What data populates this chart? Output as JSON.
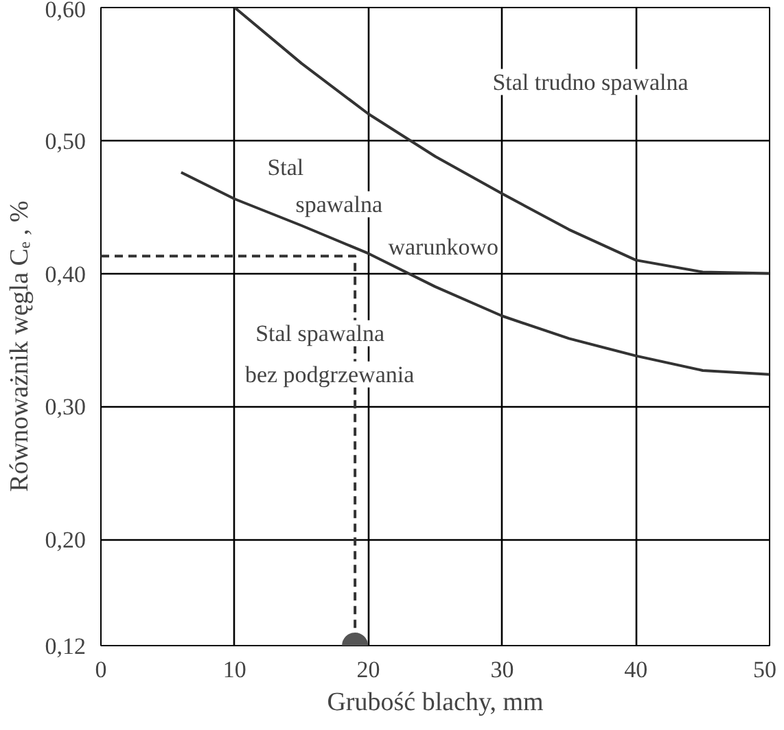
{
  "chart_data": {
    "type": "line",
    "xlabel": "Grubość blachy, mm",
    "ylabel": "Równoważnik węgla       Cₑ , %",
    "xlim": [
      0,
      50
    ],
    "xticks": [
      0,
      10,
      20,
      30,
      40,
      50
    ],
    "ylim": [
      0.12,
      0.6
    ],
    "yticks": [
      {
        "value": 0.12,
        "label": "0,12"
      },
      {
        "value": 0.2,
        "label": "0,20"
      },
      {
        "value": 0.3,
        "label": "0,30"
      },
      {
        "value": 0.4,
        "label": "0,40"
      },
      {
        "value": 0.5,
        "label": "0,50"
      },
      {
        "value": 0.6,
        "label": "0,60"
      }
    ],
    "grid": true,
    "series": [
      {
        "color": "#333333",
        "x": [
          10,
          15,
          20,
          25,
          30,
          35,
          40,
          45,
          50
        ],
        "values": [
          0.6,
          0.558,
          0.52,
          0.488,
          0.46,
          0.433,
          0.41,
          0.401,
          0.4
        ]
      },
      {
        "color": "#333333",
        "x": [
          6,
          10,
          15,
          20,
          25,
          30,
          35,
          40,
          45,
          50
        ],
        "values": [
          0.476,
          0.456,
          0.436,
          0.415,
          0.39,
          0.368,
          0.351,
          0.338,
          0.327,
          0.324
        ]
      },
      {
        "color": "#333333",
        "line_style": "dashed",
        "x": [
          0,
          19,
          19
        ],
        "values": [
          0.413,
          0.413,
          0.12
        ]
      },
      {
        "type": "scatter",
        "marker": "circle",
        "color": "#555555",
        "x": [
          19
        ],
        "values": [
          0.12
        ]
      }
    ],
    "annotations": [
      "Stal trudno spawalna",
      "Stal",
      "spawalna",
      "warunkowo",
      "Stal  spawalna",
      "bez podgrzewania"
    ]
  }
}
